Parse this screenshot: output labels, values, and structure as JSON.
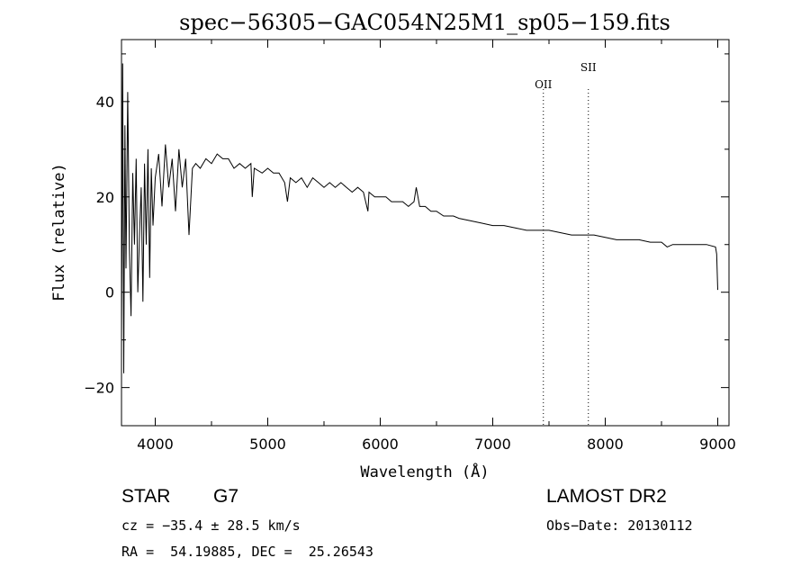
{
  "chart_data": {
    "type": "line",
    "title": "spec−56305−GAC054N25M1_sp05−159.fits",
    "xlabel": "Wavelength (Å)",
    "ylabel": "Flux (relative)",
    "xlim": [
      3700,
      9100
    ],
    "ylim": [
      -28,
      53
    ],
    "xticks": [
      4000,
      5000,
      6000,
      7000,
      8000,
      9000
    ],
    "yticks": [
      -20,
      0,
      20,
      40
    ],
    "ytick_labels": [
      "−20",
      "0",
      "20",
      "40"
    ],
    "grid": false,
    "series": [
      {
        "x": [
          3700,
          3710,
          3720,
          3730,
          3740,
          3755,
          3770,
          3785,
          3800,
          3815,
          3830,
          3845,
          3860,
          3875,
          3890,
          3905,
          3920,
          3935,
          3950,
          3965,
          3980,
          4000,
          4030,
          4060,
          4090,
          4120,
          4150,
          4180,
          4210,
          4240,
          4270,
          4300,
          4330,
          4360,
          4400,
          4450,
          4500,
          4550,
          4600,
          4650,
          4700,
          4750,
          4800,
          4850,
          4862,
          4880,
          4950,
          5000,
          5050,
          5100,
          5150,
          5175,
          5200,
          5250,
          5300,
          5350,
          5400,
          5450,
          5500,
          5550,
          5600,
          5650,
          5700,
          5750,
          5800,
          5850,
          5890,
          5900,
          5950,
          6000,
          6050,
          6100,
          6150,
          6200,
          6250,
          6300,
          6320,
          6350,
          6400,
          6450,
          6500,
          6563,
          6600,
          6650,
          6700,
          6800,
          6900,
          7000,
          7100,
          7200,
          7300,
          7400,
          7500,
          7600,
          7700,
          7800,
          7900,
          8000,
          8100,
          8200,
          8300,
          8400,
          8500,
          8550,
          8600,
          8662,
          8700,
          8800,
          8900,
          8980,
          8990,
          9000
        ],
        "values": [
          -10,
          48,
          -17,
          35,
          5,
          42,
          9,
          -5,
          25,
          10,
          28,
          0,
          12,
          22,
          -2,
          27,
          10,
          30,
          3,
          26,
          14,
          24,
          29,
          18,
          31,
          22,
          28,
          17,
          30,
          22,
          28,
          12,
          26,
          27,
          26,
          28,
          27,
          29,
          28,
          28,
          26,
          27,
          26,
          27,
          20,
          26,
          25,
          26,
          25,
          25,
          23,
          19,
          24,
          23,
          24,
          22,
          24,
          23,
          22,
          23,
          22,
          23,
          22,
          21,
          22,
          21,
          17,
          21,
          20,
          20,
          20,
          19,
          19,
          19,
          18,
          19,
          22,
          18,
          18,
          17,
          17,
          16,
          16,
          16,
          15.5,
          15,
          14.5,
          14,
          14,
          13.5,
          13,
          13,
          13,
          12.5,
          12,
          12,
          12,
          11.5,
          11,
          11,
          11,
          10.5,
          10.5,
          9.5,
          10,
          10,
          10,
          10,
          10,
          9.5,
          8,
          0.5
        ]
      }
    ],
    "annotations": [
      {
        "label": "OII",
        "x": 7450
      },
      {
        "label": "SII",
        "x": 7850
      }
    ]
  },
  "info": {
    "object_class": "STAR",
    "subclass": "G7",
    "survey": "LAMOST DR2",
    "cz": "cz = −35.4 ± 28.5 km/s",
    "obs_date": "Obs−Date: 20130112",
    "coords": "RA =  54.19885, DEC =  25.26543"
  }
}
